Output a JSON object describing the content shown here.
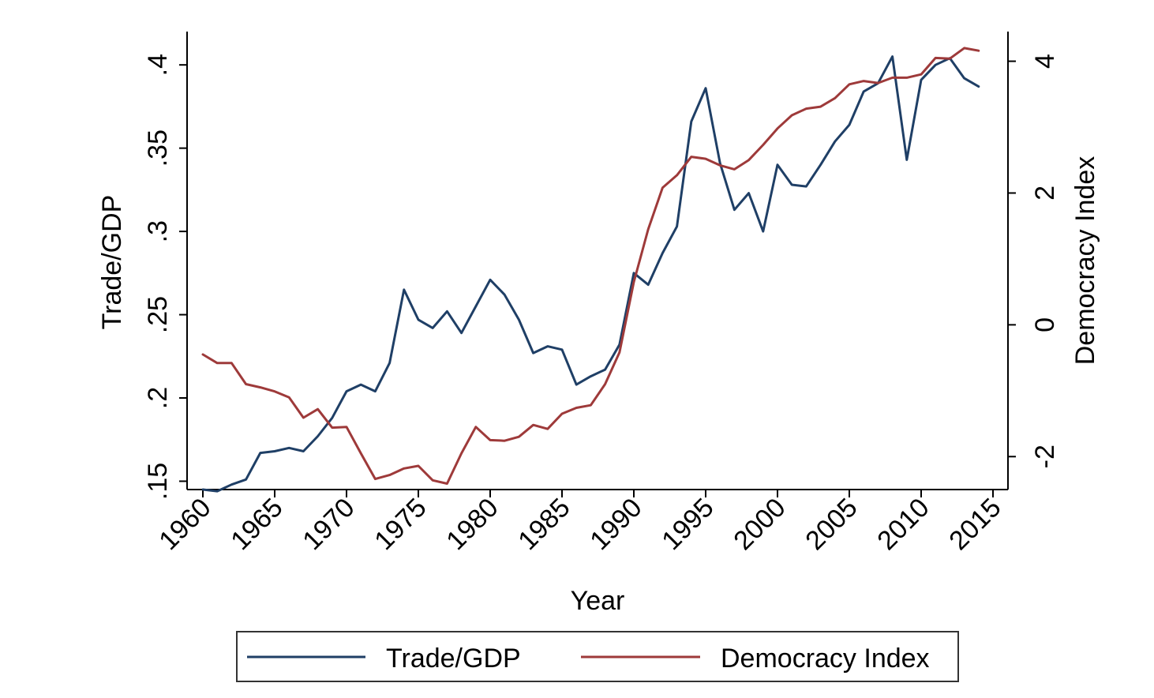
{
  "chart_data": {
    "type": "line",
    "title": "",
    "xlabel": "Year",
    "ylabel_left": "Trade/GDP",
    "ylabel_right": "Democracy Index",
    "xlim": [
      1960,
      2015
    ],
    "ylim_left": [
      0.145,
      0.42
    ],
    "ylim_right": [
      -2.5,
      4.45
    ],
    "x_ticks": [
      1960,
      1965,
      1970,
      1975,
      1980,
      1985,
      1990,
      1995,
      2000,
      2005,
      2010,
      2015
    ],
    "y_left_ticks": [
      ".15",
      ".2",
      ".25",
      ".3",
      ".35",
      ".4"
    ],
    "y_left_tick_values": [
      0.15,
      0.2,
      0.25,
      0.3,
      0.35,
      0.4
    ],
    "y_right_ticks": [
      "-2",
      "0",
      "2",
      "4"
    ],
    "y_right_tick_values": [
      -2,
      0,
      2,
      4
    ],
    "grid": false,
    "legend_position": "bottom",
    "x": [
      1960,
      1961,
      1962,
      1963,
      1964,
      1965,
      1966,
      1967,
      1968,
      1969,
      1970,
      1971,
      1972,
      1973,
      1974,
      1975,
      1976,
      1977,
      1978,
      1979,
      1980,
      1981,
      1982,
      1983,
      1984,
      1985,
      1986,
      1987,
      1988,
      1989,
      1990,
      1991,
      1992,
      1993,
      1994,
      1995,
      1996,
      1997,
      1998,
      1999,
      2000,
      2001,
      2002,
      2003,
      2004,
      2005,
      2006,
      2007,
      2008,
      2009,
      2010,
      2011,
      2012,
      2013,
      2014
    ],
    "series": [
      {
        "name": "Trade/GDP",
        "axis": "left",
        "color": "#1f3f66",
        "values": [
          0.145,
          0.144,
          0.148,
          0.151,
          0.167,
          0.168,
          0.17,
          0.168,
          0.177,
          0.188,
          0.204,
          0.208,
          0.204,
          0.221,
          0.265,
          0.247,
          0.242,
          0.252,
          0.239,
          0.255,
          0.271,
          0.262,
          0.247,
          0.227,
          0.231,
          0.229,
          0.208,
          0.213,
          0.217,
          0.232,
          0.275,
          0.268,
          0.287,
          0.303,
          0.366,
          0.386,
          0.341,
          0.313,
          0.323,
          0.3,
          0.34,
          0.328,
          0.327,
          0.34,
          0.354,
          0.364,
          0.384,
          0.389,
          0.405,
          0.343,
          0.391,
          0.4,
          0.404,
          0.392,
          0.387
        ]
      },
      {
        "name": "Democracy Index",
        "axis": "right",
        "color": "#9e3a3a",
        "values": [
          -0.45,
          -0.58,
          -0.58,
          -0.9,
          -0.95,
          -1.01,
          -1.1,
          -1.41,
          -1.28,
          -1.56,
          -1.55,
          -1.95,
          -2.34,
          -2.28,
          -2.18,
          -2.14,
          -2.36,
          -2.41,
          -1.95,
          -1.55,
          -1.75,
          -1.76,
          -1.7,
          -1.52,
          -1.58,
          -1.35,
          -1.26,
          -1.22,
          -0.9,
          -0.42,
          0.65,
          1.45,
          2.08,
          2.27,
          2.55,
          2.52,
          2.42,
          2.36,
          2.5,
          2.73,
          2.98,
          3.18,
          3.28,
          3.31,
          3.44,
          3.65,
          3.7,
          3.67,
          3.75,
          3.75,
          3.8,
          4.05,
          4.04,
          4.2,
          4.16
        ]
      }
    ]
  }
}
